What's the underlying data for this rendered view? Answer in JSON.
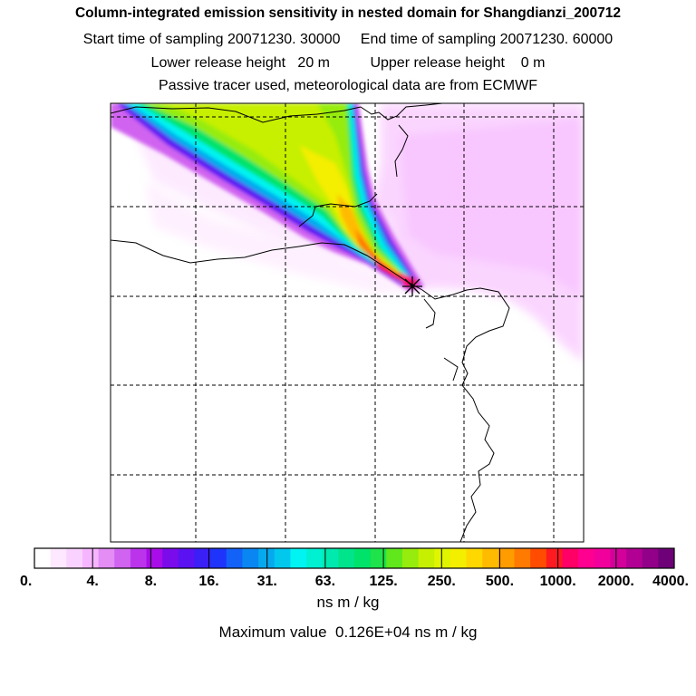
{
  "chart_data": {
    "type": "heatmap",
    "title": "Column-integrated emission sensitivity in nested domain for Shangdianzi_200712",
    "subtitle_lines": [
      "Start time of sampling 20071230. 30000     End time of sampling 20071230. 60000",
      "Lower release height   20 m          Upper release height    0 m",
      "Passive tracer used, meteorological data are from ECMWF"
    ],
    "colorbar": {
      "tick_labels": [
        "0.",
        "4.",
        "8.",
        "16.",
        "31.",
        "63.",
        "125.",
        "250.",
        "500.",
        "1000.",
        "2000.",
        "4000."
      ],
      "colors": [
        "#ffffff",
        "#fde8ff",
        "#fad2ff",
        "#f6b6ff",
        "#e38df5",
        "#d064f0",
        "#bb34ec",
        "#a80ce8",
        "#7a0cec",
        "#5a12f2",
        "#3a1ff6",
        "#1f34fa",
        "#1362f8",
        "#0a86f2",
        "#06a9ee",
        "#02c8ee",
        "#00f4f2",
        "#00f0d2",
        "#00eab0",
        "#00e48c",
        "#00e36a",
        "#1ee34a",
        "#60e81c",
        "#96ec0c",
        "#c6f000",
        "#e0f600",
        "#f4ee00",
        "#ffd800",
        "#ffbb00",
        "#ff9c00",
        "#ff7a00",
        "#ff4c00",
        "#ff1a22",
        "#ff0066",
        "#ff0090",
        "#f2009c",
        "#d4009a",
        "#b20094",
        "#92008a",
        "#6e0078"
      ],
      "unit": "ns m / kg"
    },
    "maximum_label": "Maximum value  0.126E+04 ns m / kg",
    "release_site_marker": "star"
  }
}
